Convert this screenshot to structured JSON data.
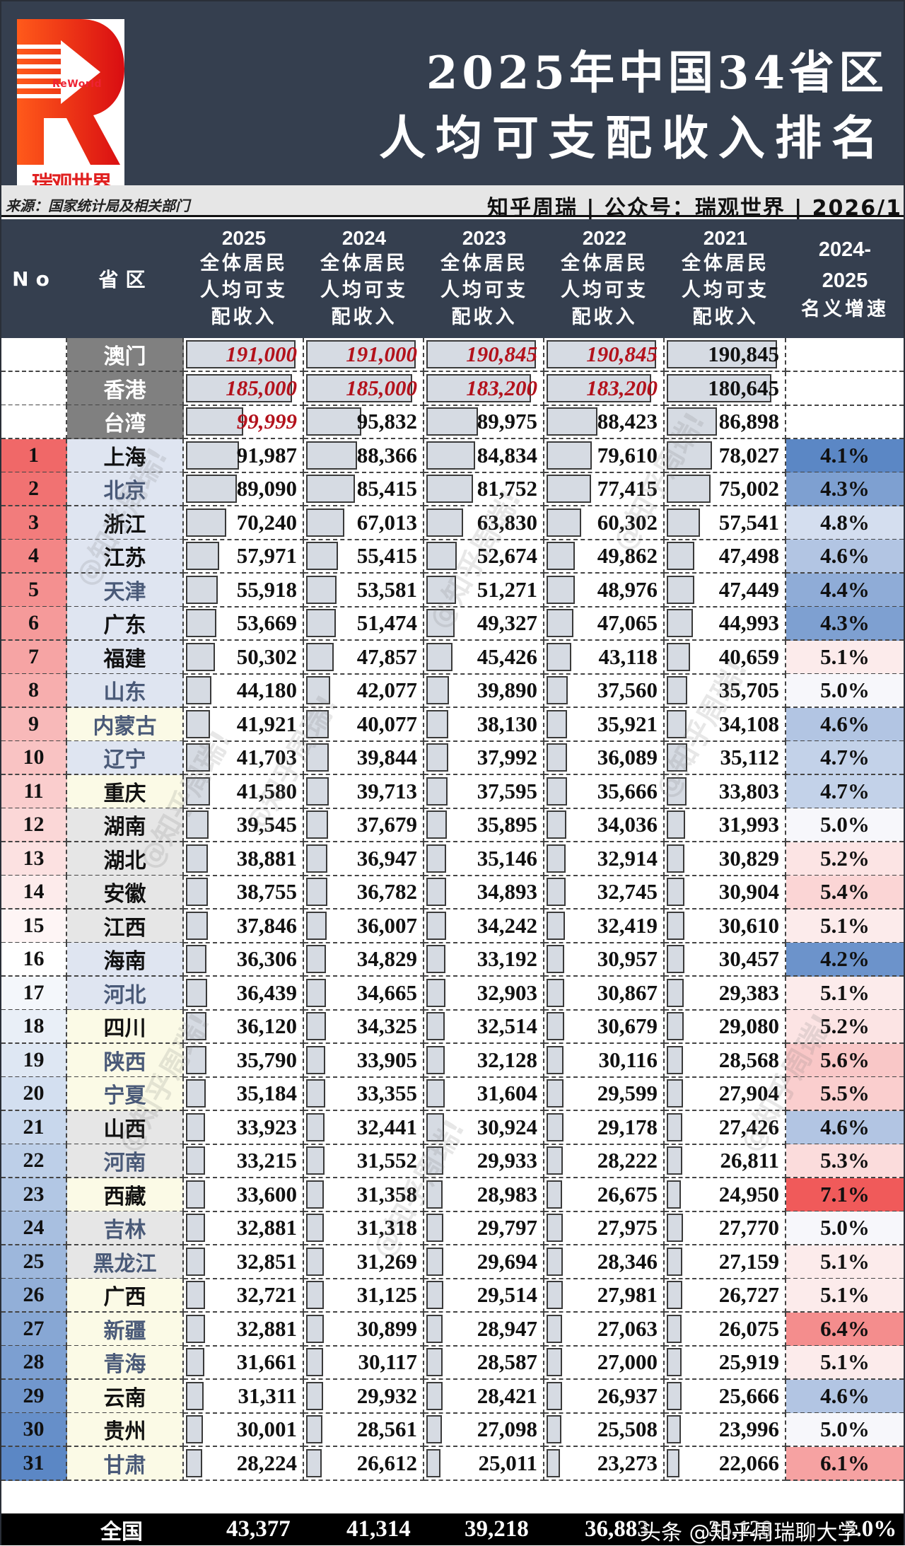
{
  "header": {
    "logo_tag": "ReWorld",
    "logo_cn": "瑞观世界",
    "title_line1": "2025年中国34省区",
    "title_line2": "人均可支配收入排名",
    "source": "来源：国家统计局及相关部门",
    "credit": "知乎周瑞 | 公众号：瑞观世界 | 2026/1"
  },
  "table_header": {
    "no": "No",
    "province": "省区",
    "columns": [
      {
        "year": "2025",
        "l1": "全体居民",
        "l2": "人均可支",
        "l3": "配收入"
      },
      {
        "year": "2024",
        "l1": "全体居民",
        "l2": "人均可支",
        "l3": "配收入"
      },
      {
        "year": "2023",
        "l1": "全体居民",
        "l2": "人均可支",
        "l3": "配收入"
      },
      {
        "year": "2022",
        "l1": "全体居民",
        "l2": "人均可支",
        "l3": "配收入"
      },
      {
        "year": "2021",
        "l1": "全体居民",
        "l2": "人均可支",
        "l3": "配收入"
      }
    ],
    "growth": {
      "l1": "2024-",
      "l2": "2025",
      "l3": "名义增速"
    }
  },
  "special_rows": [
    {
      "name": "澳门",
      "v2025": "191,000",
      "v2024": "191,000",
      "v2023": "190,845",
      "v2022": "190,845",
      "v2021": "190,845",
      "red": [
        true,
        true,
        true,
        true,
        false
      ]
    },
    {
      "name": "香港",
      "v2025": "185,000",
      "v2024": "185,000",
      "v2023": "183,200",
      "v2022": "183,200",
      "v2021": "180,645",
      "red": [
        true,
        true,
        true,
        true,
        false
      ]
    },
    {
      "name": "台湾",
      "v2025": "99,999",
      "v2024": "95,832",
      "v2023": "89,975",
      "v2022": "88,423",
      "v2021": "86,898",
      "red": [
        true,
        false,
        false,
        false,
        false
      ]
    }
  ],
  "rows": [
    {
      "no": "1",
      "name": "上海",
      "v2025": "91,987",
      "v2024": "88,366",
      "v2023": "84,834",
      "v2022": "79,610",
      "v2021": "78,027",
      "growth": "4.1%"
    },
    {
      "no": "2",
      "name": "北京",
      "v2025": "89,090",
      "v2024": "85,415",
      "v2023": "81,752",
      "v2022": "77,415",
      "v2021": "75,002",
      "growth": "4.3%"
    },
    {
      "no": "3",
      "name": "浙江",
      "v2025": "70,240",
      "v2024": "67,013",
      "v2023": "63,830",
      "v2022": "60,302",
      "v2021": "57,541",
      "growth": "4.8%"
    },
    {
      "no": "4",
      "name": "江苏",
      "v2025": "57,971",
      "v2024": "55,415",
      "v2023": "52,674",
      "v2022": "49,862",
      "v2021": "47,498",
      "growth": "4.6%"
    },
    {
      "no": "5",
      "name": "天津",
      "v2025": "55,918",
      "v2024": "53,581",
      "v2023": "51,271",
      "v2022": "48,976",
      "v2021": "47,449",
      "growth": "4.4%"
    },
    {
      "no": "6",
      "name": "广东",
      "v2025": "53,669",
      "v2024": "51,474",
      "v2023": "49,327",
      "v2022": "47,065",
      "v2021": "44,993",
      "growth": "4.3%"
    },
    {
      "no": "7",
      "name": "福建",
      "v2025": "50,302",
      "v2024": "47,857",
      "v2023": "45,426",
      "v2022": "43,118",
      "v2021": "40,659",
      "growth": "5.1%"
    },
    {
      "no": "8",
      "name": "山东",
      "v2025": "44,180",
      "v2024": "42,077",
      "v2023": "39,890",
      "v2022": "37,560",
      "v2021": "35,705",
      "growth": "5.0%"
    },
    {
      "no": "9",
      "name": "内蒙古",
      "v2025": "41,921",
      "v2024": "40,077",
      "v2023": "38,130",
      "v2022": "35,921",
      "v2021": "34,108",
      "growth": "4.6%"
    },
    {
      "no": "10",
      "name": "辽宁",
      "v2025": "41,703",
      "v2024": "39,844",
      "v2023": "37,992",
      "v2022": "36,089",
      "v2021": "35,112",
      "growth": "4.7%"
    },
    {
      "no": "11",
      "name": "重庆",
      "v2025": "41,580",
      "v2024": "39,713",
      "v2023": "37,595",
      "v2022": "35,666",
      "v2021": "33,803",
      "growth": "4.7%"
    },
    {
      "no": "12",
      "name": "湖南",
      "v2025": "39,545",
      "v2024": "37,679",
      "v2023": "35,895",
      "v2022": "34,036",
      "v2021": "31,993",
      "growth": "5.0%"
    },
    {
      "no": "13",
      "name": "湖北",
      "v2025": "38,881",
      "v2024": "36,947",
      "v2023": "35,146",
      "v2022": "32,914",
      "v2021": "30,829",
      "growth": "5.2%"
    },
    {
      "no": "14",
      "name": "安徽",
      "v2025": "38,755",
      "v2024": "36,782",
      "v2023": "34,893",
      "v2022": "32,745",
      "v2021": "30,904",
      "growth": "5.4%"
    },
    {
      "no": "15",
      "name": "江西",
      "v2025": "37,846",
      "v2024": "36,007",
      "v2023": "34,242",
      "v2022": "32,419",
      "v2021": "30,610",
      "growth": "5.1%"
    },
    {
      "no": "16",
      "name": "海南",
      "v2025": "36,306",
      "v2024": "34,829",
      "v2023": "33,192",
      "v2022": "30,957",
      "v2021": "30,457",
      "growth": "4.2%"
    },
    {
      "no": "17",
      "name": "河北",
      "v2025": "36,439",
      "v2024": "34,665",
      "v2023": "32,903",
      "v2022": "30,867",
      "v2021": "29,383",
      "growth": "5.1%"
    },
    {
      "no": "18",
      "name": "四川",
      "v2025": "36,120",
      "v2024": "34,325",
      "v2023": "32,514",
      "v2022": "30,679",
      "v2021": "29,080",
      "growth": "5.2%"
    },
    {
      "no": "19",
      "name": "陕西",
      "v2025": "35,790",
      "v2024": "33,905",
      "v2023": "32,128",
      "v2022": "30,116",
      "v2021": "28,568",
      "growth": "5.6%"
    },
    {
      "no": "20",
      "name": "宁夏",
      "v2025": "35,184",
      "v2024": "33,355",
      "v2023": "31,604",
      "v2022": "29,599",
      "v2021": "27,904",
      "growth": "5.5%"
    },
    {
      "no": "21",
      "name": "山西",
      "v2025": "33,923",
      "v2024": "32,441",
      "v2023": "30,924",
      "v2022": "29,178",
      "v2021": "27,426",
      "growth": "4.6%"
    },
    {
      "no": "22",
      "name": "河南",
      "v2025": "33,215",
      "v2024": "31,552",
      "v2023": "29,933",
      "v2022": "28,222",
      "v2021": "26,811",
      "growth": "5.3%"
    },
    {
      "no": "23",
      "name": "西藏",
      "v2025": "33,600",
      "v2024": "31,358",
      "v2023": "28,983",
      "v2022": "26,675",
      "v2021": "24,950",
      "growth": "7.1%"
    },
    {
      "no": "24",
      "name": "吉林",
      "v2025": "32,881",
      "v2024": "31,318",
      "v2023": "29,797",
      "v2022": "27,975",
      "v2021": "27,770",
      "growth": "5.0%"
    },
    {
      "no": "25",
      "name": "黑龙江",
      "v2025": "32,851",
      "v2024": "31,269",
      "v2023": "29,694",
      "v2022": "28,346",
      "v2021": "27,159",
      "growth": "5.1%"
    },
    {
      "no": "26",
      "name": "广西",
      "v2025": "32,721",
      "v2024": "31,125",
      "v2023": "29,514",
      "v2022": "27,981",
      "v2021": "26,727",
      "growth": "5.1%"
    },
    {
      "no": "27",
      "name": "新疆",
      "v2025": "32,881",
      "v2024": "30,899",
      "v2023": "28,947",
      "v2022": "27,063",
      "v2021": "26,075",
      "growth": "6.4%"
    },
    {
      "no": "28",
      "name": "青海",
      "v2025": "31,661",
      "v2024": "30,117",
      "v2023": "28,587",
      "v2022": "27,000",
      "v2021": "25,919",
      "growth": "5.1%"
    },
    {
      "no": "29",
      "name": "云南",
      "v2025": "31,311",
      "v2024": "29,932",
      "v2023": "28,421",
      "v2022": "26,937",
      "v2021": "25,666",
      "growth": "4.6%"
    },
    {
      "no": "30",
      "name": "贵州",
      "v2025": "30,001",
      "v2024": "28,561",
      "v2023": "27,098",
      "v2022": "25,508",
      "v2021": "23,996",
      "growth": "5.0%"
    },
    {
      "no": "31",
      "name": "甘肃",
      "v2025": "28,224",
      "v2024": "26,612",
      "v2023": "25,011",
      "v2022": "23,273",
      "v2021": "22,066",
      "growth": "6.1%"
    }
  ],
  "national": {
    "name": "全国",
    "v2025": "43,377",
    "v2024": "41,314",
    "v2023": "39,218",
    "v2022": "36,883",
    "v2021": "35,128",
    "growth": "5.0%"
  },
  "watermark": "头条 @知乎周瑞聊大学",
  "colors": {
    "header_bg": "#353f4f",
    "special_name_bg": "#808080",
    "bar_fill": "#d6dbe3",
    "red_value": "#b3121c",
    "growth_low": "#5b87c5",
    "growth_high": "#f05a5a"
  },
  "chart_data": {
    "type": "table",
    "title": "2025年中国34省区人均可支配收入排名",
    "source": "国家统计局及相关部门",
    "columns": [
      "No",
      "省区",
      "2025",
      "2024",
      "2023",
      "2022",
      "2021",
      "2024-2025名义增速"
    ],
    "special": [
      {
        "region": "澳门",
        "values": [
          191000,
          191000,
          190845,
          190845,
          190845
        ]
      },
      {
        "region": "香港",
        "values": [
          185000,
          185000,
          183200,
          183200,
          180645
        ]
      },
      {
        "region": "台湾",
        "values": [
          99999,
          95832,
          89975,
          88423,
          86898
        ]
      }
    ],
    "categories": [
      "上海",
      "北京",
      "浙江",
      "江苏",
      "天津",
      "广东",
      "福建",
      "山东",
      "内蒙古",
      "辽宁",
      "重庆",
      "湖南",
      "湖北",
      "安徽",
      "江西",
      "海南",
      "河北",
      "四川",
      "陕西",
      "宁夏",
      "山西",
      "河南",
      "西藏",
      "吉林",
      "黑龙江",
      "广西",
      "新疆",
      "青海",
      "云南",
      "贵州",
      "甘肃"
    ],
    "series": [
      {
        "name": "2025",
        "values": [
          91987,
          89090,
          70240,
          57971,
          55918,
          53669,
          50302,
          44180,
          41921,
          41703,
          41580,
          39545,
          38881,
          38755,
          37846,
          36306,
          36439,
          36120,
          35790,
          35184,
          33923,
          33215,
          33600,
          32881,
          32851,
          32721,
          32881,
          31661,
          31311,
          30001,
          28224
        ]
      },
      {
        "name": "2024",
        "values": [
          88366,
          85415,
          67013,
          55415,
          53581,
          51474,
          47857,
          42077,
          40077,
          39844,
          39713,
          37679,
          36947,
          36782,
          36007,
          34829,
          34665,
          34325,
          33905,
          33355,
          32441,
          31552,
          31358,
          31318,
          31269,
          31125,
          30899,
          30117,
          29932,
          28561,
          26612
        ]
      },
      {
        "name": "2023",
        "values": [
          84834,
          81752,
          63830,
          52674,
          51271,
          49327,
          45426,
          39890,
          38130,
          37992,
          37595,
          35895,
          35146,
          34893,
          34242,
          33192,
          32903,
          32514,
          32128,
          31604,
          30924,
          29933,
          28983,
          29797,
          29694,
          29514,
          28947,
          28587,
          28421,
          27098,
          25011
        ]
      },
      {
        "name": "2022",
        "values": [
          79610,
          77415,
          60302,
          49862,
          48976,
          47065,
          43118,
          37560,
          35921,
          36089,
          35666,
          34036,
          32914,
          32745,
          32419,
          30957,
          30867,
          30679,
          30116,
          29599,
          29178,
          28222,
          26675,
          27975,
          28346,
          27981,
          27063,
          27000,
          26937,
          25508,
          23273
        ]
      },
      {
        "name": "2021",
        "values": [
          78027,
          75002,
          57541,
          47498,
          47449,
          44993,
          40659,
          35705,
          34108,
          35112,
          33803,
          31993,
          30829,
          30904,
          30610,
          30457,
          29383,
          29080,
          28568,
          27904,
          27426,
          26811,
          24950,
          27770,
          27159,
          26727,
          26075,
          25919,
          25666,
          23996,
          22066
        ]
      },
      {
        "name": "2024-2025名义增速(%)",
        "values": [
          4.1,
          4.3,
          4.8,
          4.6,
          4.4,
          4.3,
          5.1,
          5.0,
          4.6,
          4.7,
          4.7,
          5.0,
          5.2,
          5.4,
          5.1,
          4.2,
          5.1,
          5.2,
          5.6,
          5.5,
          4.6,
          5.3,
          7.1,
          5.0,
          5.1,
          5.1,
          6.4,
          5.1,
          4.6,
          5.0,
          6.1
        ]
      }
    ],
    "national": {
      "region": "全国",
      "values": [
        43377,
        41314,
        39218,
        36883,
        35128
      ],
      "growth": 5.0
    }
  }
}
